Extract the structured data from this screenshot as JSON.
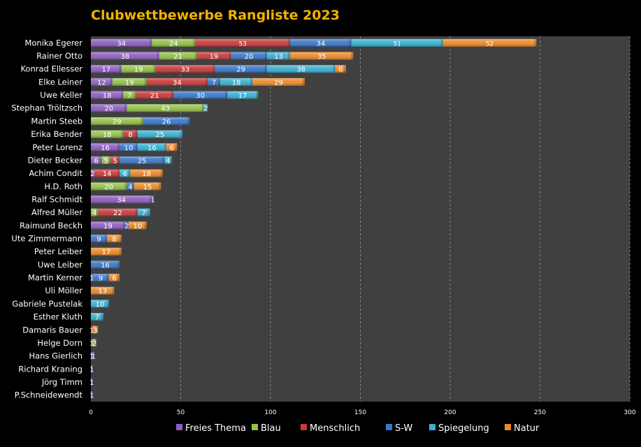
{
  "chart_data": {
    "type": "bar",
    "orientation": "horizontal",
    "stacked": true,
    "title": "Clubwettbewerbe Rangliste 2023",
    "xlabel": "",
    "ylabel": "",
    "xlim": [
      0,
      300
    ],
    "xticks": [
      0,
      50,
      100,
      150,
      200,
      250,
      300
    ],
    "grid": "vertical dashed",
    "legend_position": "bottom",
    "categories": [
      "Monika Egerer",
      "Rainer Otto",
      "Konrad Ellesser",
      "Elke Leiner",
      "Uwe Keller",
      "Stephan Tröltzsch",
      "Martin Steeb",
      "Erika Bender",
      "Peter Lorenz",
      "Dieter Becker",
      "Achim Condit",
      "H.D. Roth",
      "Ralf Schmidt",
      "Alfred Müller",
      "Raimund Beckh",
      "Ute Zimmermann",
      "Peter Leiber",
      "Uwe Leiber",
      "Martin  Kerner",
      "Uli Möller",
      "Gabriele Pustelak",
      "Esther Kluth",
      "Damaris Bauer",
      "Helge Dorn",
      "Hans Gierlich",
      "Richard Kraning",
      "Jörg Timm",
      "P.Schneidewendt"
    ],
    "series": [
      {
        "name": "Freies Thema",
        "color": "#8e5fc0",
        "values": [
          34,
          38,
          17,
          12,
          18,
          20,
          null,
          null,
          16,
          6,
          2,
          null,
          34,
          null,
          19,
          null,
          null,
          null,
          1,
          null,
          null,
          null,
          null,
          1,
          1,
          1,
          1,
          1
        ]
      },
      {
        "name": "Blau",
        "color": "#94c24a",
        "values": [
          24,
          21,
          19,
          19,
          7,
          43,
          29,
          18,
          null,
          5,
          null,
          20,
          null,
          4,
          null,
          null,
          null,
          null,
          null,
          null,
          null,
          null,
          null,
          2,
          null,
          null,
          null,
          null
        ]
      },
      {
        "name": "Menschlich",
        "color": "#c83a3a",
        "values": [
          53,
          19,
          33,
          34,
          21,
          null,
          null,
          8,
          null,
          5,
          14,
          null,
          null,
          22,
          null,
          null,
          null,
          null,
          null,
          null,
          null,
          null,
          1,
          null,
          null,
          null,
          null,
          null
        ]
      },
      {
        "name": "S-W",
        "color": "#3a78c8",
        "values": [
          34,
          20,
          29,
          7,
          30,
          null,
          26,
          null,
          10,
          25,
          null,
          4,
          1,
          null,
          2,
          9,
          null,
          16,
          9,
          null,
          null,
          null,
          null,
          null,
          1,
          null,
          null,
          null
        ]
      },
      {
        "name": "Spiegelung",
        "color": "#3ab0d2",
        "values": [
          51,
          13,
          38,
          18,
          17,
          2,
          null,
          25,
          16,
          4,
          6,
          null,
          null,
          7,
          null,
          null,
          null,
          null,
          null,
          null,
          10,
          7,
          null,
          null,
          null,
          null,
          null,
          null
        ]
      },
      {
        "name": "Natur",
        "color": "#ec8a2a",
        "values": [
          52,
          35,
          6,
          29,
          null,
          null,
          null,
          null,
          6,
          null,
          18,
          15,
          null,
          null,
          10,
          8,
          17,
          null,
          6,
          13,
          null,
          null,
          3,
          null,
          null,
          null,
          null,
          null
        ]
      }
    ]
  }
}
